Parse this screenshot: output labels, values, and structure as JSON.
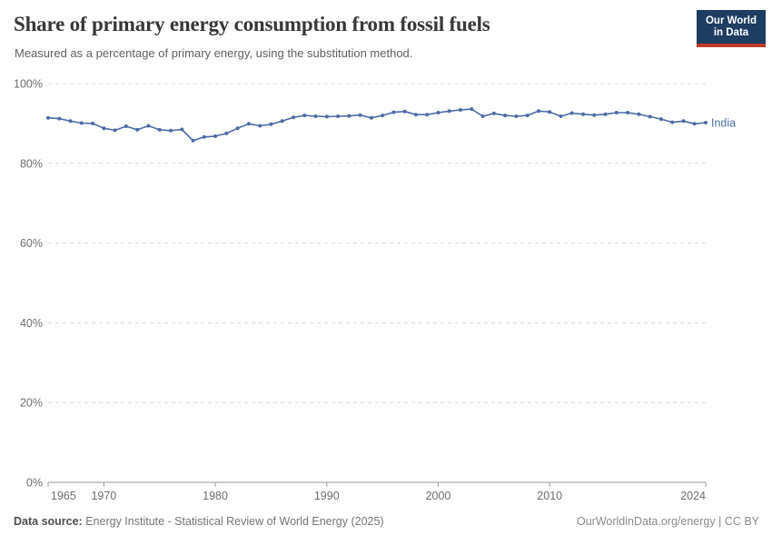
{
  "header": {
    "title": "Share of primary energy consumption from fossil fuels",
    "subtitle": "Measured as a percentage of primary energy, using the substitution method."
  },
  "logo": {
    "line1": "Our World",
    "line2": "in Data",
    "bg_color": "#1d3d63",
    "accent_color": "#c0392b"
  },
  "chart_data": {
    "type": "line",
    "title": "Share of primary energy consumption from fossil fuels",
    "xlabel": "",
    "ylabel": "",
    "ylim": [
      0,
      100
    ],
    "yticks": [
      0,
      20,
      40,
      60,
      80,
      100
    ],
    "ytick_suffix": "%",
    "xticks": [
      1965,
      1970,
      1980,
      1990,
      2000,
      2010,
      2024
    ],
    "grid": true,
    "grid_style": "dashed",
    "legend_position": "end-of-line",
    "x": [
      1965,
      1966,
      1967,
      1968,
      1969,
      1970,
      1971,
      1972,
      1973,
      1974,
      1975,
      1976,
      1977,
      1978,
      1979,
      1980,
      1981,
      1982,
      1983,
      1984,
      1985,
      1986,
      1987,
      1988,
      1989,
      1990,
      1991,
      1992,
      1993,
      1994,
      1995,
      1996,
      1997,
      1998,
      1999,
      2000,
      2001,
      2002,
      2003,
      2004,
      2005,
      2006,
      2007,
      2008,
      2009,
      2010,
      2011,
      2012,
      2013,
      2014,
      2015,
      2016,
      2017,
      2018,
      2019,
      2020,
      2021,
      2022,
      2023,
      2024
    ],
    "series": [
      {
        "name": "India",
        "color": "#4d6ba8",
        "values": [
          91.4,
          91.2,
          90.6,
          90.1,
          90.0,
          88.8,
          88.3,
          89.3,
          88.4,
          89.4,
          88.4,
          88.2,
          88.5,
          85.7,
          86.6,
          86.8,
          87.5,
          88.8,
          89.9,
          89.4,
          89.8,
          90.6,
          91.5,
          92.0,
          91.8,
          91.7,
          91.8,
          91.9,
          92.1,
          91.4,
          92.0,
          92.8,
          93.0,
          92.2,
          92.2,
          92.7,
          93.1,
          93.4,
          93.6,
          91.8,
          92.5,
          92.0,
          91.8,
          92.0,
          93.1,
          92.9,
          91.8,
          92.6,
          92.3,
          92.1,
          92.3,
          92.7,
          92.7,
          92.3,
          91.7,
          91.1,
          90.3,
          90.6,
          89.9,
          90.2
        ]
      }
    ]
  },
  "footer": {
    "datasource_label": "Data source:",
    "datasource_text": "Energy Institute - Statistical Review of World Energy (2025)",
    "attribution": "OurWorldinData.org/energy | CC BY"
  },
  "colors": {
    "series": "#4d6ba8",
    "grid": "#dcdcdc",
    "axis": "#9a9a9a",
    "tick_label": "#6d6d6d",
    "title": "#383838",
    "subtitle": "#5f5f5f"
  }
}
